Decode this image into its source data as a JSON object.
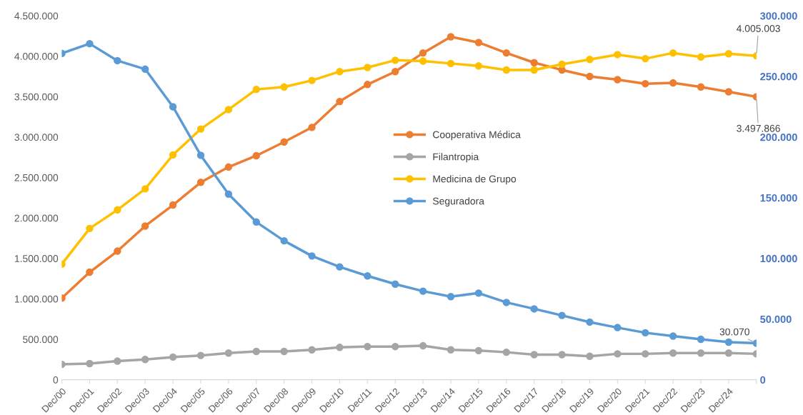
{
  "chart_data": {
    "type": "line",
    "categories": [
      "Dec/00",
      "Dec/01",
      "Dec/02",
      "Dec/03",
      "Dec/04",
      "Dec/05",
      "Dec/06",
      "Dec/07",
      "Dec/08",
      "Dec/09",
      "Dec/10",
      "Dec/11",
      "Dec/12",
      "Dec/13",
      "Dec/14",
      "Dec/15",
      "Dec/16",
      "Dec/17",
      "Dec/18",
      "Dec/19",
      "Dec/20",
      "Dec/21",
      "Dec/22",
      "Dec/23",
      "Dec/24",
      null
    ],
    "ylim": [
      0,
      4500000
    ],
    "yticks": [
      0,
      {
        "value": 500000,
        "label": "500.000"
      },
      {
        "value": 1000000,
        "label": "1.000.000"
      },
      {
        "value": 1500000,
        "label": "1.500.000"
      },
      {
        "value": 2000000,
        "label": "2.000.000"
      },
      {
        "value": 2500000,
        "label": "2.500.000"
      },
      {
        "value": 3000000,
        "label": "3.000.000"
      },
      {
        "value": 3500000,
        "label": "3.500.000"
      },
      {
        "value": 4000000,
        "label": "4.000.000"
      },
      {
        "value": 4500000,
        "label": "4.500.000"
      }
    ],
    "y2lim": [
      0,
      300000
    ],
    "y2ticks": [
      0,
      {
        "value": 50000,
        "label": "50.000"
      },
      {
        "value": 100000,
        "label": "100.000"
      },
      {
        "value": 150000,
        "label": "150.000"
      },
      {
        "value": 200000,
        "label": "200.000"
      },
      {
        "value": 250000,
        "label": "250.000"
      },
      {
        "value": 300000,
        "label": "300.000"
      }
    ],
    "marker": "circle",
    "line_style": "solid",
    "legend": "center",
    "series": [
      {
        "name": "Cooperativa Médica",
        "color": "#ed7d31",
        "values": [
          1010000,
          1330000,
          1590000,
          1900000,
          2160000,
          2440000,
          2630000,
          2770000,
          2940000,
          3120000,
          3440000,
          3650000,
          3810000,
          4040000,
          4240000,
          4170000,
          4040000,
          3920000,
          3830000,
          3750000,
          3710000,
          3660000,
          3670000,
          3620000,
          3560000,
          3497866
        ],
        "value_labels": [
          null,
          null,
          null,
          null,
          null,
          null,
          null,
          null,
          null,
          null,
          null,
          null,
          null,
          null,
          null,
          null,
          null,
          null,
          null,
          null,
          null,
          null,
          null,
          null,
          null,
          "3.497.866"
        ]
      },
      {
        "name": "Filantropia",
        "color": "#a5a5a5",
        "values": [
          190000,
          200000,
          230000,
          250000,
          280000,
          300000,
          330000,
          350000,
          350000,
          370000,
          400000,
          410000,
          410000,
          420000,
          370000,
          360000,
          340000,
          310000,
          310000,
          290000,
          320000,
          320000,
          330000,
          330000,
          330000,
          320000
        ]
      },
      {
        "name": "Medicina de Grupo",
        "color": "#ffc000",
        "values": [
          1430000,
          1870000,
          2100000,
          2360000,
          2780000,
          3100000,
          3340000,
          3590000,
          3620000,
          3700000,
          3810000,
          3860000,
          3950000,
          3940000,
          3910000,
          3880000,
          3830000,
          3830000,
          3900000,
          3960000,
          4020000,
          3970000,
          4040000,
          3990000,
          4030000,
          4005003
        ],
        "value_labels": [
          null,
          null,
          null,
          null,
          null,
          null,
          null,
          null,
          null,
          null,
          null,
          null,
          null,
          null,
          null,
          null,
          null,
          null,
          null,
          null,
          null,
          null,
          null,
          null,
          null,
          "4.005.003"
        ]
      },
      {
        "name": "Seguradora",
        "color": "#5b9bd5",
        "axis": "y2",
        "values": [
          269000,
          277000,
          263000,
          256000,
          225000,
          185000,
          153000,
          130000,
          114500,
          102000,
          93000,
          85600,
          78800,
          73000,
          68500,
          71400,
          63700,
          58400,
          53000,
          47500,
          43000,
          38700,
          36000,
          33300,
          31000,
          30070
        ],
        "value_labels": [
          null,
          null,
          null,
          null,
          null,
          null,
          null,
          null,
          null,
          null,
          null,
          null,
          null,
          null,
          null,
          null,
          null,
          null,
          null,
          null,
          null,
          null,
          null,
          null,
          null,
          "30.070"
        ]
      }
    ]
  }
}
